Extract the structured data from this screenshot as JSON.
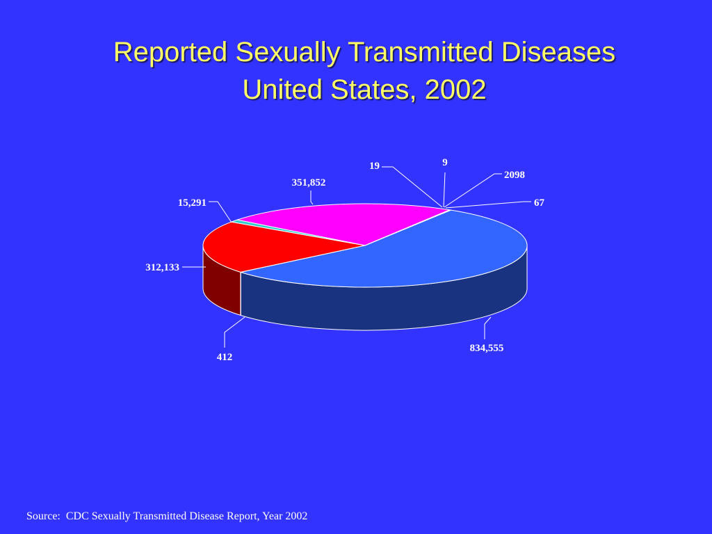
{
  "title": {
    "line1": "Reported Sexually Transmitted Diseases",
    "line2": "United States, 2002"
  },
  "source": "Source:  CDC Sexually Transmitted Disease Report, Year 2002",
  "chart_data": {
    "type": "pie",
    "three_d": true,
    "legend": "none",
    "slices": [
      {
        "label": "834,555",
        "value": 834555,
        "color": "#3366ff",
        "side_color": "#1a3380"
      },
      {
        "label": "412",
        "value": 412,
        "color": "#66cccc",
        "side_color": "#336666"
      },
      {
        "label": "312,133",
        "value": 312133,
        "color": "#ff0000",
        "side_color": "#800000"
      },
      {
        "label": "15,291",
        "value": 15291,
        "color": "#33cccc",
        "side_color": "#1a6666"
      },
      {
        "label": "351,852",
        "value": 351852,
        "color": "#ff00ff",
        "side_color": "#800080"
      },
      {
        "label": "19",
        "value": 19,
        "color": "#ffcc00",
        "side_color": "#806600"
      },
      {
        "label": "9",
        "value": 9,
        "color": "#cccccc",
        "side_color": "#666666"
      },
      {
        "label": "2098",
        "value": 2098,
        "color": "#ff9966",
        "side_color": "#804d33"
      },
      {
        "label": "67",
        "value": 67,
        "color": "#99ccff",
        "side_color": "#4d6680"
      }
    ]
  }
}
